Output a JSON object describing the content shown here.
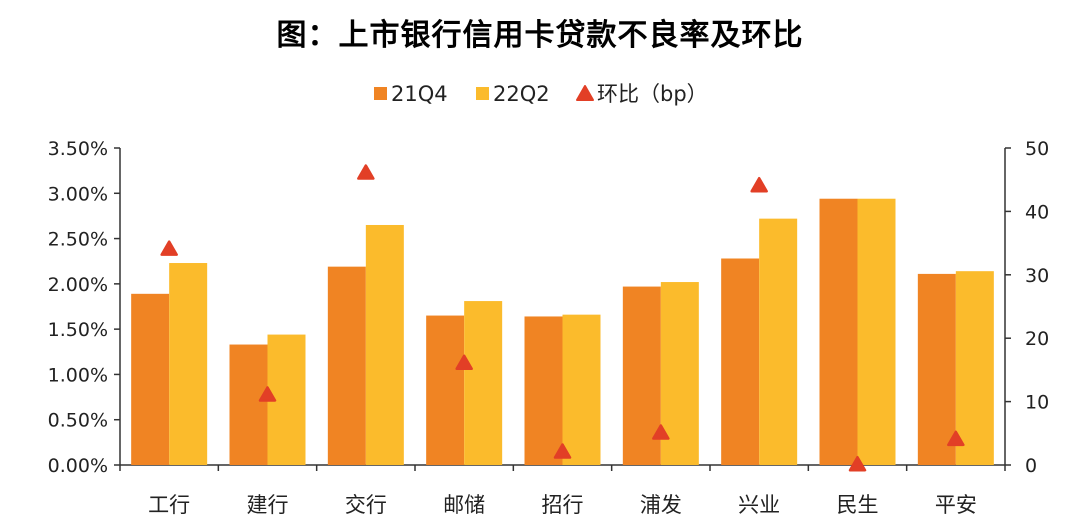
{
  "chart_data": {
    "type": "bar",
    "title": "图：上市银行信用卡贷款不良率及环比",
    "categories": [
      "工行",
      "建行",
      "交行",
      "邮储",
      "招行",
      "浦发",
      "兴业",
      "民生",
      "平安"
    ],
    "series": [
      {
        "name": "21Q4",
        "type": "bar",
        "axis": "left",
        "color": "#F08423",
        "values": [
          1.89,
          1.33,
          2.19,
          1.65,
          1.64,
          1.97,
          2.28,
          2.94,
          2.11
        ]
      },
      {
        "name": "22Q2",
        "type": "bar",
        "axis": "left",
        "color": "#FBBB2C",
        "values": [
          2.23,
          1.44,
          2.65,
          1.81,
          1.66,
          2.02,
          2.72,
          2.94,
          2.14
        ]
      },
      {
        "name": "环比（bp）",
        "type": "marker-triangle",
        "axis": "right",
        "color": "#E23F26",
        "values": [
          34,
          11,
          46,
          16,
          2,
          5,
          44,
          0,
          4
        ]
      }
    ],
    "left_axis": {
      "min": 0,
      "max": 3.5,
      "step": 0.5,
      "ticks": [
        "0.00%",
        "0.50%",
        "1.00%",
        "1.50%",
        "2.00%",
        "2.50%",
        "3.00%",
        "3.50%"
      ]
    },
    "right_axis": {
      "min": 0,
      "max": 50,
      "step": 10,
      "ticks": [
        "0",
        "10",
        "20",
        "30",
        "40",
        "50"
      ]
    },
    "legend_position": "top-center",
    "grid": false
  }
}
